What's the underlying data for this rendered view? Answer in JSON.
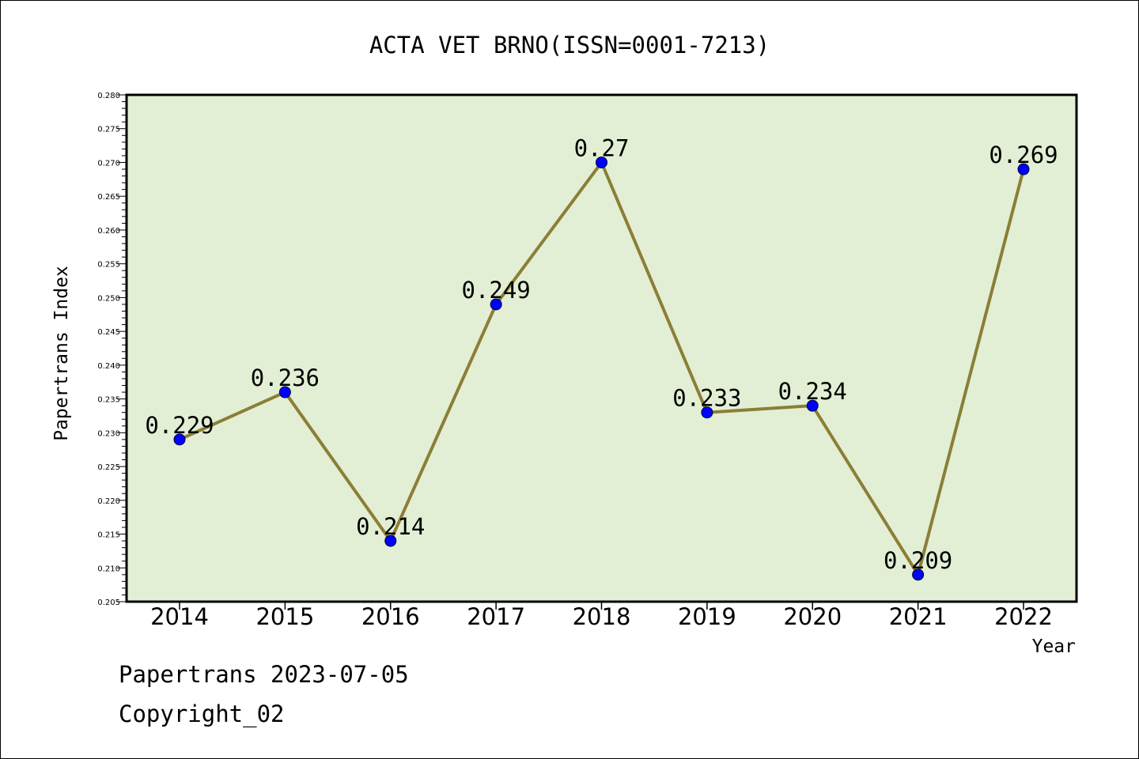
{
  "chart_data": {
    "type": "line",
    "title": "ACTA VET BRNO(ISSN=0001-7213)",
    "xlabel": "Year",
    "ylabel": "Papertrans Index",
    "categories": [
      "2014",
      "2015",
      "2016",
      "2017",
      "2018",
      "2019",
      "2020",
      "2021",
      "2022"
    ],
    "series": [
      {
        "values": [
          0.229,
          0.236,
          0.214,
          0.249,
          0.27,
          0.233,
          0.234,
          0.209,
          0.269
        ],
        "labels": [
          "0.229",
          "0.236",
          "0.214",
          "0.249",
          "0.27",
          "0.233",
          "0.234",
          "0.209",
          "0.269"
        ]
      }
    ],
    "ylim": [
      0.205,
      0.28
    ],
    "yticks": [
      "0.205",
      "0.210",
      "0.215",
      "0.220",
      "0.225",
      "0.230",
      "0.235",
      "0.240",
      "0.245",
      "0.250",
      "0.255",
      "0.260",
      "0.265",
      "0.270",
      "0.275",
      "0.280"
    ],
    "grid": false,
    "legend": "none",
    "colors": {
      "plot_background": "#e2efd5",
      "line": "#8b7e36",
      "marker": "#0000ff"
    }
  },
  "footer": {
    "line1": "Papertrans 2023-07-05",
    "line2": "Copyright_02"
  }
}
